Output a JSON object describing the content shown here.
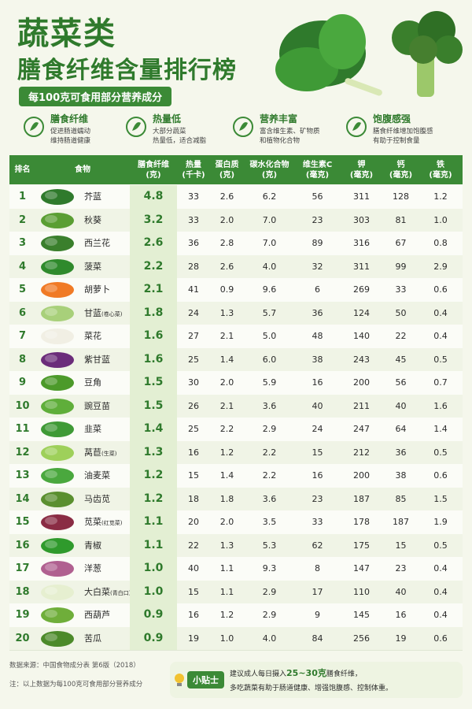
{
  "header": {
    "title": "蔬菜类",
    "subtitle": "膳食纤维含量排行榜",
    "badge": "每100克可食用部分营养成分"
  },
  "features": [
    {
      "title": "膳食纤维",
      "lines": [
        "促进肠道蠕动",
        "维持肠道健康"
      ]
    },
    {
      "title": "热量低",
      "lines": [
        "大部分蔬菜",
        "热量低，适合减脂"
      ]
    },
    {
      "title": "营养丰富",
      "lines": [
        "富含维生素、矿物质",
        "和植物化合物"
      ]
    },
    {
      "title": "饱腹感强",
      "lines": [
        "膳食纤维增加饱腹感",
        "有助于控制食量"
      ]
    }
  ],
  "table": {
    "columns": [
      {
        "name": "排名"
      },
      {
        "name": "食物"
      },
      {
        "name": "膳食纤维",
        "unit": "(克)"
      },
      {
        "name": "热量",
        "unit": "(千卡)"
      },
      {
        "name": "蛋白质",
        "unit": "(克)"
      },
      {
        "name": "碳水化合物",
        "unit": "(克)"
      },
      {
        "name": "维生素C",
        "unit": "(毫克)"
      },
      {
        "name": "钾",
        "unit": "(毫克)"
      },
      {
        "name": "钙",
        "unit": "(毫克)"
      },
      {
        "name": "铁",
        "unit": "(毫克)"
      }
    ],
    "rows": [
      {
        "rank": 1,
        "food": "芥蓝",
        "values": [
          "4.8",
          "33",
          "2.6",
          "6.2",
          "56",
          "311",
          "128",
          "1.2"
        ]
      },
      {
        "rank": 2,
        "food": "秋葵",
        "values": [
          "3.2",
          "33",
          "2.0",
          "7.0",
          "23",
          "303",
          "81",
          "1.0"
        ]
      },
      {
        "rank": 3,
        "food": "西兰花",
        "values": [
          "2.6",
          "36",
          "2.8",
          "7.0",
          "89",
          "316",
          "67",
          "0.8"
        ]
      },
      {
        "rank": 4,
        "food": "菠菜",
        "values": [
          "2.2",
          "28",
          "2.6",
          "4.0",
          "32",
          "311",
          "99",
          "2.9"
        ]
      },
      {
        "rank": 5,
        "food": "胡萝卜",
        "values": [
          "2.1",
          "41",
          "0.9",
          "9.6",
          "6",
          "269",
          "33",
          "0.6"
        ]
      },
      {
        "rank": 6,
        "food": "甘蓝",
        "note": "(卷心菜)",
        "values": [
          "1.8",
          "24",
          "1.3",
          "5.7",
          "36",
          "124",
          "50",
          "0.4"
        ]
      },
      {
        "rank": 7,
        "food": "菜花",
        "values": [
          "1.6",
          "27",
          "2.1",
          "5.0",
          "48",
          "140",
          "22",
          "0.4"
        ]
      },
      {
        "rank": 8,
        "food": "紫甘蓝",
        "values": [
          "1.6",
          "25",
          "1.4",
          "6.0",
          "38",
          "243",
          "45",
          "0.5"
        ]
      },
      {
        "rank": 9,
        "food": "豆角",
        "values": [
          "1.5",
          "30",
          "2.0",
          "5.9",
          "16",
          "200",
          "56",
          "0.7"
        ]
      },
      {
        "rank": 10,
        "food": "豌豆苗",
        "values": [
          "1.5",
          "26",
          "2.1",
          "3.6",
          "40",
          "211",
          "40",
          "1.6"
        ]
      },
      {
        "rank": 11,
        "food": "韭菜",
        "values": [
          "1.4",
          "25",
          "2.2",
          "2.9",
          "24",
          "247",
          "64",
          "1.4"
        ]
      },
      {
        "rank": 12,
        "food": "莴苣",
        "note": "(生菜)",
        "values": [
          "1.3",
          "16",
          "1.2",
          "2.2",
          "15",
          "212",
          "36",
          "0.5"
        ]
      },
      {
        "rank": 13,
        "food": "油麦菜",
        "values": [
          "1.2",
          "15",
          "1.4",
          "2.2",
          "16",
          "200",
          "38",
          "0.6"
        ]
      },
      {
        "rank": 14,
        "food": "马齿苋",
        "values": [
          "1.2",
          "18",
          "1.8",
          "3.6",
          "23",
          "187",
          "85",
          "1.5"
        ]
      },
      {
        "rank": 15,
        "food": "苋菜",
        "note": "(红苋菜)",
        "values": [
          "1.1",
          "20",
          "2.0",
          "3.5",
          "33",
          "178",
          "187",
          "1.9"
        ]
      },
      {
        "rank": 16,
        "food": "青椒",
        "values": [
          "1.1",
          "22",
          "1.3",
          "5.3",
          "62",
          "175",
          "15",
          "0.5"
        ]
      },
      {
        "rank": 17,
        "food": "洋葱",
        "values": [
          "1.0",
          "40",
          "1.1",
          "9.3",
          "8",
          "147",
          "23",
          "0.4"
        ]
      },
      {
        "rank": 18,
        "food": "大白菜",
        "note": "(青白口)",
        "values": [
          "1.0",
          "15",
          "1.1",
          "2.9",
          "17",
          "110",
          "40",
          "0.4"
        ]
      },
      {
        "rank": 19,
        "food": "西葫芦",
        "values": [
          "0.9",
          "16",
          "1.2",
          "2.9",
          "9",
          "145",
          "16",
          "0.4"
        ]
      },
      {
        "rank": 20,
        "food": "苦瓜",
        "values": [
          "0.9",
          "19",
          "1.0",
          "4.0",
          "84",
          "256",
          "19",
          "0.6"
        ]
      }
    ]
  },
  "footer": {
    "source": "数据来源：中国食物成分表 第6版（2018）",
    "note": "注：以上数据为每100克可食用部分营养成分",
    "tip": {
      "label": "小贴士",
      "line1": [
        "建议成人每日摄入",
        "25~30克",
        "膳食纤维，"
      ],
      "line2": "多吃蔬菜有助于肠道健康、增强饱腹感、控制体重。"
    }
  }
}
